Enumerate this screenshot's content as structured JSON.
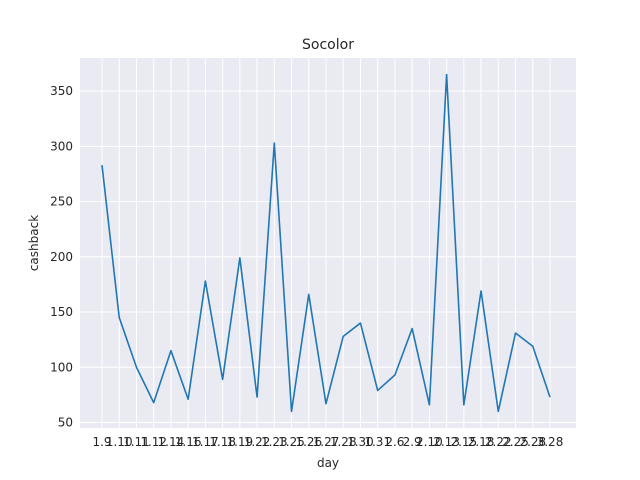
{
  "chart_data": {
    "type": "line",
    "title": "Socolor",
    "xlabel": "day",
    "ylabel": "cashback",
    "categories": [
      "1.9",
      "1.10",
      "1.11",
      "1.12",
      "1.14",
      "1.16",
      "1.17",
      "1.18",
      "1.19",
      "1.22",
      "1.23",
      "1.25",
      "1.26",
      "1.27",
      "1.28",
      "1.30",
      "1.31",
      "2.6",
      "2.9",
      "2.10",
      "2.13",
      "2.15",
      "2.18",
      "2.22",
      "2.25",
      "2.28",
      "3.28"
    ],
    "series": [
      {
        "values": [
          283,
          145,
          100,
          68,
          115,
          71,
          178,
          89,
          199,
          73,
          303,
          60,
          166,
          67,
          128,
          140,
          79,
          93,
          135,
          66,
          365,
          66,
          169,
          60,
          131,
          119,
          73
        ]
      }
    ],
    "ylim": [
      45,
      380
    ],
    "yticks": [
      50,
      100,
      150,
      200,
      250,
      300,
      350
    ],
    "grid": true,
    "line_color": "#1f77b4",
    "background_color": "#eaeaf2"
  }
}
